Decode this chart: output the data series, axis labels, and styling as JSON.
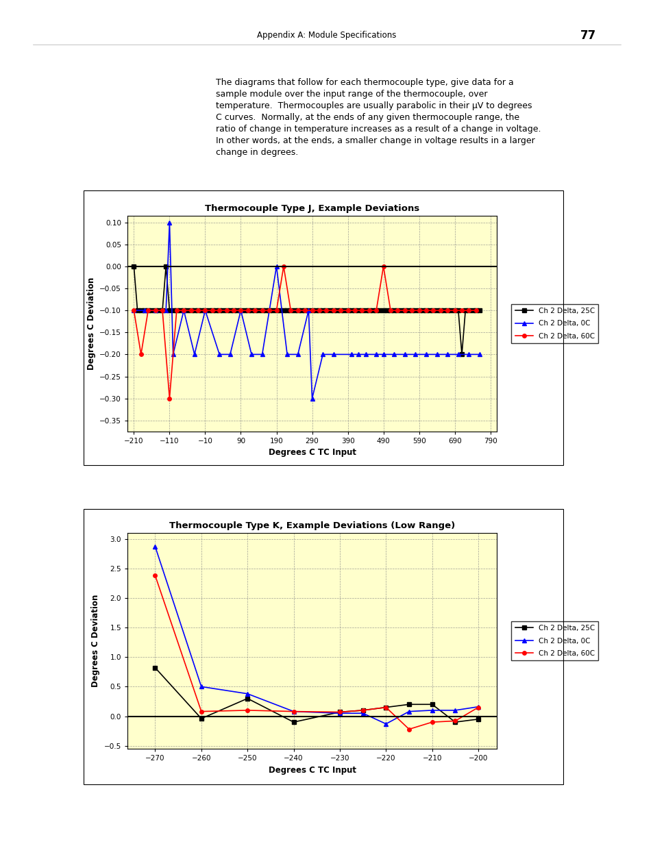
{
  "page_header": "Appendix A: Module Specifications",
  "page_number": "77",
  "intro_text": "The diagrams that follow for each thermocouple type, give data for a\nsample module over the input range of the thermocouple, over\ntemperature.  Thermocouples are usually parabolic in their μV to degrees\nC curves.  Normally, at the ends of any given thermocouple range, the\nratio of change in temperature increases as a result of a change in voltage.\nIn other words, at the ends, a smaller change in voltage results in a larger\nchange in degrees.",
  "chart1": {
    "title": "Thermocouple Type J, Example Deviations",
    "xlabel": "Degrees C TC Input",
    "ylabel": "Degrees C Deviation",
    "bg_color": "#FFFFCC",
    "ylim": [
      -0.375,
      0.115
    ],
    "yticks": [
      0.1,
      0.05,
      0,
      -0.05,
      -0.1,
      -0.15,
      -0.2,
      -0.25,
      -0.3,
      -0.35
    ],
    "xticks": [
      -210,
      -110,
      -10,
      90,
      190,
      290,
      390,
      490,
      590,
      690,
      790
    ],
    "xlim": [
      -228,
      808
    ],
    "series": {
      "ch2_25c": {
        "label": "Ch 2 Delta, 25C",
        "color": "#000000",
        "marker": "s",
        "markersize": 4,
        "linewidth": 1.2,
        "x": [
          -210,
          -200,
          -190,
          -180,
          -170,
          -160,
          -150,
          -140,
          -130,
          -120,
          -110,
          -100,
          -90,
          -80,
          -70,
          -60,
          -50,
          -40,
          -30,
          -20,
          -10,
          0,
          10,
          20,
          30,
          40,
          50,
          60,
          70,
          80,
          90,
          100,
          110,
          120,
          130,
          140,
          150,
          160,
          170,
          180,
          190,
          200,
          210,
          220,
          230,
          240,
          250,
          260,
          270,
          280,
          290,
          300,
          310,
          320,
          330,
          340,
          350,
          360,
          370,
          380,
          390,
          400,
          410,
          420,
          430,
          440,
          450,
          460,
          470,
          480,
          490,
          500,
          510,
          520,
          530,
          540,
          550,
          560,
          570,
          580,
          590,
          600,
          610,
          620,
          630,
          640,
          650,
          660,
          670,
          680,
          690,
          700,
          710,
          720,
          730,
          740,
          750,
          760
        ],
        "y": [
          0,
          -0.1,
          -0.1,
          -0.1,
          -0.1,
          -0.1,
          -0.1,
          -0.1,
          -0.1,
          0,
          -0.1,
          -0.1,
          -0.1,
          -0.1,
          -0.1,
          -0.1,
          -0.1,
          -0.1,
          -0.1,
          -0.1,
          -0.1,
          -0.1,
          -0.1,
          -0.1,
          -0.1,
          -0.1,
          -0.1,
          -0.1,
          -0.1,
          -0.1,
          -0.1,
          -0.1,
          -0.1,
          -0.1,
          -0.1,
          -0.1,
          -0.1,
          -0.1,
          -0.1,
          -0.1,
          -0.1,
          -0.1,
          -0.1,
          -0.1,
          -0.1,
          -0.1,
          -0.1,
          -0.1,
          -0.1,
          -0.1,
          -0.1,
          -0.1,
          -0.1,
          -0.1,
          -0.1,
          -0.1,
          -0.1,
          -0.1,
          -0.1,
          -0.1,
          -0.1,
          -0.1,
          -0.1,
          -0.1,
          -0.1,
          -0.1,
          -0.1,
          -0.1,
          -0.1,
          -0.1,
          -0.1,
          -0.1,
          -0.1,
          -0.1,
          -0.1,
          -0.1,
          -0.1,
          -0.1,
          -0.1,
          -0.1,
          -0.1,
          -0.1,
          -0.1,
          -0.1,
          -0.1,
          -0.1,
          -0.1,
          -0.1,
          -0.1,
          -0.1,
          -0.1,
          -0.1,
          -0.2,
          -0.1,
          -0.1,
          -0.1,
          -0.1,
          -0.1
        ]
      },
      "ch2_0c": {
        "label": "Ch 2 Delta, 0C",
        "color": "#0000FF",
        "marker": "^",
        "markersize": 4,
        "linewidth": 1.2,
        "x": [
          -210,
          -180,
          -150,
          -120,
          -110,
          -100,
          -70,
          -40,
          -10,
          30,
          60,
          90,
          120,
          150,
          190,
          220,
          250,
          280,
          290,
          320,
          350,
          400,
          420,
          440,
          470,
          490,
          520,
          550,
          580,
          610,
          640,
          670,
          700,
          730,
          760
        ],
        "y": [
          -0.1,
          -0.1,
          -0.1,
          -0.1,
          0.1,
          -0.2,
          -0.1,
          -0.2,
          -0.1,
          -0.2,
          -0.2,
          -0.1,
          -0.2,
          -0.2,
          0,
          -0.2,
          -0.2,
          -0.1,
          -0.3,
          -0.2,
          -0.2,
          -0.2,
          -0.2,
          -0.2,
          -0.2,
          -0.2,
          -0.2,
          -0.2,
          -0.2,
          -0.2,
          -0.2,
          -0.2,
          -0.2,
          -0.2,
          -0.2
        ]
      },
      "ch2_60c": {
        "label": "Ch 2 Delta, 60C",
        "color": "#FF0000",
        "marker": "o",
        "markersize": 4,
        "linewidth": 1.2,
        "x": [
          -210,
          -190,
          -170,
          -150,
          -130,
          -110,
          -90,
          -70,
          -50,
          -30,
          -10,
          10,
          30,
          50,
          70,
          90,
          110,
          130,
          150,
          170,
          190,
          210,
          230,
          250,
          270,
          290,
          310,
          330,
          350,
          370,
          390,
          410,
          430,
          450,
          470,
          490,
          510,
          530,
          550,
          570,
          590,
          610,
          630,
          650,
          670,
          690,
          710,
          730,
          750
        ],
        "y": [
          -0.1,
          -0.2,
          -0.1,
          -0.1,
          -0.1,
          -0.3,
          -0.1,
          -0.1,
          -0.1,
          -0.1,
          -0.1,
          -0.1,
          -0.1,
          -0.1,
          -0.1,
          -0.1,
          -0.1,
          -0.1,
          -0.1,
          -0.1,
          -0.1,
          0,
          -0.1,
          -0.1,
          -0.1,
          -0.1,
          -0.1,
          -0.1,
          -0.1,
          -0.1,
          -0.1,
          -0.1,
          -0.1,
          -0.1,
          -0.1,
          0,
          -0.1,
          -0.1,
          -0.1,
          -0.1,
          -0.1,
          -0.1,
          -0.1,
          -0.1,
          -0.1,
          -0.1,
          -0.1,
          -0.1,
          -0.1
        ]
      }
    }
  },
  "chart2": {
    "title": "Thermocouple Type K, Example Deviations (Low Range)",
    "xlabel": "Degrees C TC Input",
    "ylabel": "Degrees C Deviation",
    "bg_color": "#FFFFCC",
    "ylim": [
      -0.55,
      3.1
    ],
    "yticks": [
      3,
      2.5,
      2,
      1.5,
      1,
      0.5,
      0,
      -0.5
    ],
    "xticks": [
      -270,
      -260,
      -250,
      -240,
      -230,
      -220,
      -210,
      -200
    ],
    "xlim": [
      -276,
      -196
    ],
    "series": {
      "ch2_25c": {
        "label": "Ch 2 Delta, 25C",
        "color": "#000000",
        "marker": "s",
        "markersize": 4,
        "linewidth": 1.2,
        "x": [
          -270,
          -260,
          -250,
          -240,
          -230,
          -225,
          -220,
          -215,
          -210,
          -205,
          -200
        ],
        "y": [
          0.82,
          -0.04,
          0.3,
          -0.1,
          0.07,
          0.1,
          0.15,
          0.2,
          0.2,
          -0.1,
          -0.05
        ]
      },
      "ch2_0c": {
        "label": "Ch 2 Delta, 0C",
        "color": "#0000FF",
        "marker": "^",
        "markersize": 4,
        "linewidth": 1.2,
        "x": [
          -270,
          -260,
          -250,
          -240,
          -230,
          -225,
          -220,
          -215,
          -210,
          -205,
          -200
        ],
        "y": [
          2.87,
          0.5,
          0.38,
          0.08,
          0.05,
          0.05,
          -0.13,
          0.08,
          0.1,
          0.1,
          0.16
        ]
      },
      "ch2_60c": {
        "label": "Ch 2 Delta, 60C",
        "color": "#FF0000",
        "marker": "o",
        "markersize": 4,
        "linewidth": 1.2,
        "x": [
          -270,
          -260,
          -250,
          -240,
          -230,
          -225,
          -220,
          -215,
          -210,
          -205,
          -200
        ],
        "y": [
          2.38,
          0.08,
          0.1,
          0.08,
          0.07,
          0.1,
          0.15,
          -0.22,
          -0.1,
          -0.08,
          0.15
        ]
      }
    }
  }
}
